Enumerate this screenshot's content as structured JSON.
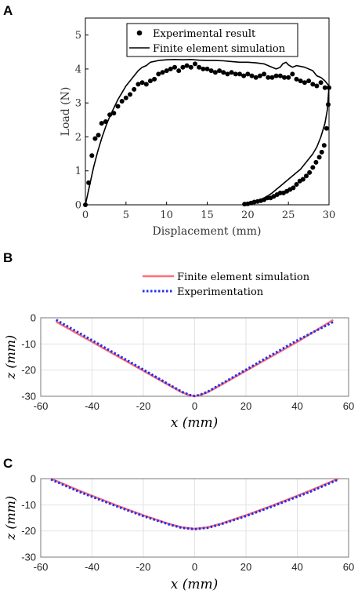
{
  "chart_data": [
    {
      "panel_label": "A",
      "type": "scatter",
      "xlabel": "Displacement (mm)",
      "ylabel": "Load (N)",
      "xlim": [
        0,
        30
      ],
      "ylim": [
        0,
        5.5
      ],
      "xticks": [
        "0",
        "5",
        "10",
        "15",
        "20",
        "25",
        "30"
      ],
      "yticks": [
        "0",
        "1",
        "2",
        "3",
        "4",
        "5"
      ],
      "legend_position": "top",
      "series": [
        {
          "name": "Experimental result",
          "style": "dots",
          "color": "#000000",
          "x": [
            0,
            0.4,
            0.8,
            1.2,
            1.6,
            2.0,
            2.5,
            3.0,
            3.5,
            4.0,
            4.5,
            5.0,
            5.5,
            6.0,
            6.5,
            7.0,
            7.5,
            8.0,
            8.5,
            9.0,
            9.5,
            10.0,
            10.5,
            11.0,
            11.5,
            12.0,
            12.5,
            13.0,
            13.5,
            14.0,
            14.5,
            15.0,
            15.5,
            16.0,
            16.5,
            17.0,
            17.5,
            18.0,
            18.5,
            19.0,
            19.5,
            20.0,
            20.5,
            21.0,
            21.5,
            22.0,
            22.5,
            23.0,
            23.5,
            24.0,
            24.5,
            25.0,
            25.5,
            26.0,
            26.5,
            27.0,
            27.5,
            28.0,
            28.5,
            29.0,
            29.5,
            30.0,
            29.9,
            29.7,
            29.4,
            29.1,
            28.8,
            28.4,
            28.0,
            27.6,
            27.2,
            26.8,
            26.4,
            26.0,
            25.6,
            25.2,
            24.8,
            24.4,
            24.0,
            23.6,
            23.2,
            22.8,
            22.4,
            22.0,
            21.6,
            21.2,
            20.8,
            20.4,
            20.0,
            19.6
          ],
          "y": [
            0,
            0.65,
            1.45,
            1.95,
            2.05,
            2.4,
            2.45,
            2.65,
            2.7,
            2.9,
            3.05,
            3.15,
            3.25,
            3.4,
            3.55,
            3.6,
            3.55,
            3.65,
            3.7,
            3.85,
            3.9,
            3.95,
            4.0,
            4.05,
            3.95,
            4.05,
            4.1,
            4.05,
            4.15,
            4.05,
            4.0,
            4.0,
            3.95,
            3.9,
            3.95,
            3.9,
            3.85,
            3.9,
            3.85,
            3.85,
            3.8,
            3.85,
            3.8,
            3.75,
            3.8,
            3.85,
            3.75,
            3.75,
            3.8,
            3.8,
            3.75,
            3.75,
            3.85,
            3.7,
            3.65,
            3.6,
            3.65,
            3.55,
            3.5,
            3.6,
            3.45,
            3.45,
            2.95,
            2.25,
            1.75,
            1.55,
            1.4,
            1.25,
            1.1,
            0.95,
            0.85,
            0.75,
            0.7,
            0.6,
            0.5,
            0.45,
            0.4,
            0.35,
            0.35,
            0.3,
            0.25,
            0.2,
            0.2,
            0.15,
            0.12,
            0.1,
            0.08,
            0.05,
            0.03,
            0.02
          ]
        },
        {
          "name": "Finite element simulation",
          "style": "line",
          "color": "#000000",
          "x": [
            0,
            0.5,
            1.0,
            1.5,
            2.0,
            2.5,
            3.0,
            3.5,
            4.0,
            4.5,
            5.0,
            5.5,
            6.0,
            6.5,
            7.0,
            7.5,
            8.0,
            9.0,
            10.0,
            11.0,
            12.0,
            13.0,
            14.0,
            15.0,
            16.0,
            17.0,
            18.0,
            19.0,
            20.0,
            21.0,
            22.0,
            22.5,
            23.0,
            23.5,
            24.0,
            24.3,
            24.7,
            25.0,
            25.5,
            26.0,
            27.0,
            28.0,
            28.5,
            29.0,
            29.5,
            30.0,
            29.8,
            29.5,
            29.0,
            28.5,
            28.0,
            27.5,
            27.0,
            26.5,
            26.0,
            25.5,
            25.0,
            24.5,
            24.0,
            23.5,
            23.0,
            22.5,
            22.0,
            21.5,
            21.0,
            20.5,
            20.0,
            19.5
          ],
          "y": [
            0,
            0.55,
            1.1,
            1.55,
            1.95,
            2.3,
            2.6,
            2.85,
            3.1,
            3.3,
            3.5,
            3.65,
            3.8,
            3.95,
            4.05,
            4.1,
            4.2,
            4.25,
            4.27,
            4.28,
            4.27,
            4.28,
            4.26,
            4.25,
            4.25,
            4.24,
            4.22,
            4.2,
            4.2,
            4.18,
            4.15,
            4.1,
            4.05,
            4.0,
            4.05,
            4.15,
            4.2,
            4.12,
            4.05,
            4.1,
            4.05,
            3.95,
            3.8,
            3.75,
            3.65,
            3.5,
            2.8,
            2.4,
            2.0,
            1.7,
            1.5,
            1.35,
            1.2,
            1.05,
            0.95,
            0.85,
            0.75,
            0.65,
            0.55,
            0.45,
            0.35,
            0.27,
            0.2,
            0.15,
            0.1,
            0.05,
            0.02,
            0
          ]
        }
      ]
    },
    {
      "panel_label": "B",
      "type": "line",
      "xlabel": "x (mm)",
      "ylabel": "z (mm)",
      "xlim": [
        -60,
        60
      ],
      "ylim": [
        -30,
        0
      ],
      "xticks": [
        "-60",
        "-40",
        "-20",
        "0",
        "20",
        "40",
        "60"
      ],
      "yticks": [
        "0",
        "-10",
        "-20",
        "-30"
      ],
      "grid": true,
      "legend_position": "top",
      "series": [
        {
          "name": "Finite element simulation",
          "style": "solid",
          "color": "#ff6f78",
          "x": [
            -54,
            -40,
            -25,
            -10,
            -5,
            -2,
            0,
            2,
            5,
            10,
            25,
            40,
            54
          ],
          "y": [
            -1.5,
            -9.2,
            -17.5,
            -25.8,
            -28.5,
            -29.6,
            -30,
            -29.6,
            -28.5,
            -25.8,
            -17.5,
            -9.2,
            -0.8
          ]
        },
        {
          "name": "Experimentation",
          "style": "dotted",
          "color": "#1f2ff0",
          "x": [
            -54,
            -40,
            -25,
            -10,
            -5,
            -2,
            0,
            2,
            5,
            10,
            25,
            40,
            54
          ],
          "y": [
            -0.8,
            -8.6,
            -17.0,
            -25.5,
            -28.3,
            -29.5,
            -29.9,
            -29.5,
            -28.3,
            -25.5,
            -17.0,
            -8.6,
            -1.6
          ]
        }
      ]
    },
    {
      "panel_label": "C",
      "type": "line",
      "xlabel": "x (mm)",
      "ylabel": "z (mm)",
      "xlim": [
        -60,
        60
      ],
      "ylim": [
        -30,
        0
      ],
      "xticks": [
        "-60",
        "-40",
        "-20",
        "0",
        "20",
        "40",
        "60"
      ],
      "yticks": [
        "0",
        "-10",
        "-20",
        "-30"
      ],
      "grid": true,
      "series": [
        {
          "name": "Finite element simulation",
          "style": "solid",
          "color": "#ff6f78",
          "x": [
            -56,
            -45,
            -30,
            -20,
            -10,
            -5,
            0,
            5,
            10,
            20,
            30,
            45,
            56
          ],
          "y": [
            0,
            -4.6,
            -10.4,
            -14.0,
            -17.3,
            -18.6,
            -19.2,
            -18.6,
            -17.3,
            -14.0,
            -10.4,
            -4.6,
            0
          ]
        },
        {
          "name": "Experimentation",
          "style": "dotted",
          "color": "#1f2ff0",
          "x": [
            -56,
            -45,
            -30,
            -20,
            -10,
            -5,
            0,
            5,
            10,
            20,
            30,
            45,
            56
          ],
          "y": [
            -0.3,
            -5.0,
            -10.7,
            -14.3,
            -17.5,
            -18.8,
            -19.3,
            -18.8,
            -17.5,
            -14.3,
            -10.7,
            -5.0,
            -0.3
          ]
        }
      ]
    }
  ]
}
